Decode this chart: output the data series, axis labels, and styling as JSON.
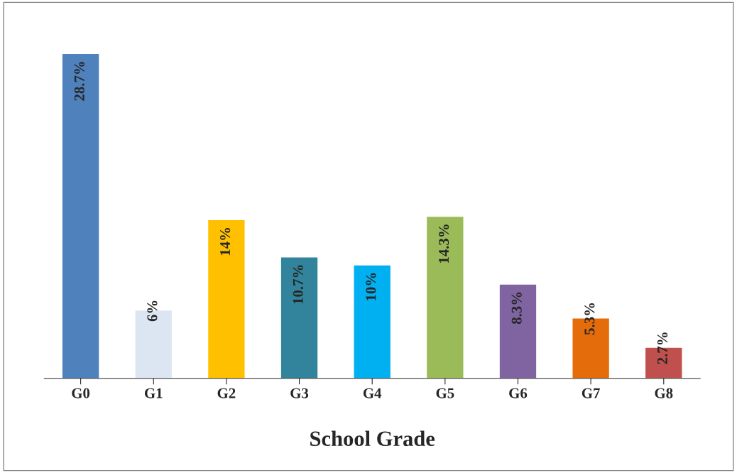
{
  "chart_data": {
    "type": "bar",
    "xlabel": "School Grade",
    "categories": [
      "G0",
      "G1",
      "G2",
      "G3",
      "G4",
      "G5",
      "G6",
      "G7",
      "G8"
    ],
    "values": [
      28.7,
      6,
      14,
      10.7,
      10,
      14.3,
      8.3,
      5.3,
      2.7
    ],
    "colors": [
      "#4f81bd",
      "#dce6f2",
      "#ffc000",
      "#31849b",
      "#00b0f0",
      "#9bbb59",
      "#8064a2",
      "#e46c0a",
      "#c0504d"
    ],
    "value_labels": [
      "28.7%",
      "6%",
      "14%",
      "10.7%",
      "10%",
      "14.3%",
      "8.3%",
      "5.3%",
      "2.7%"
    ],
    "tick_labels": "x",
    "grid": false,
    "legend": false
  }
}
